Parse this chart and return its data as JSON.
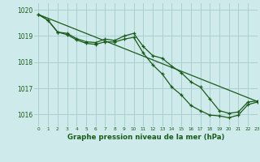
{
  "title": "Graphe pression niveau de la mer (hPa)",
  "background_color": "#ceeaea",
  "grid_color": "#aacece",
  "line_color": "#1a5c1a",
  "xlim": [
    -0.5,
    23
  ],
  "ylim": [
    1015.55,
    1020.25
  ],
  "yticks": [
    1016,
    1017,
    1018,
    1019,
    1020
  ],
  "xticks": [
    0,
    1,
    2,
    3,
    4,
    5,
    6,
    7,
    8,
    9,
    10,
    11,
    12,
    13,
    14,
    15,
    16,
    17,
    18,
    19,
    20,
    21,
    22,
    23
  ],
  "series_diagonal": {
    "x": [
      0,
      23
    ],
    "y": [
      1019.82,
      1016.5
    ]
  },
  "series_upper": {
    "x": [
      0,
      1,
      2,
      3,
      4,
      5,
      6,
      7,
      8,
      9,
      10,
      11,
      12,
      13,
      14,
      15,
      16,
      17,
      18,
      19,
      20,
      21,
      22,
      23
    ],
    "y": [
      1019.82,
      1019.6,
      1019.15,
      1019.1,
      1018.9,
      1018.78,
      1018.75,
      1018.88,
      1018.83,
      1019.0,
      1019.1,
      1018.6,
      1018.25,
      1018.15,
      1017.85,
      1017.6,
      1017.25,
      1017.05,
      1016.6,
      1016.15,
      1016.05,
      1016.1,
      1016.48,
      1016.52
    ]
  },
  "series_lower": {
    "x": [
      0,
      1,
      2,
      3,
      4,
      5,
      6,
      7,
      8,
      9,
      10,
      11,
      12,
      13,
      14,
      15,
      16,
      17,
      18,
      19,
      20,
      21,
      22,
      23
    ],
    "y": [
      1019.82,
      1019.6,
      1019.15,
      1019.05,
      1018.85,
      1018.72,
      1018.68,
      1018.78,
      1018.77,
      1018.88,
      1018.95,
      1018.35,
      1017.9,
      1017.55,
      1017.05,
      1016.75,
      1016.35,
      1016.15,
      1015.98,
      1015.95,
      1015.88,
      1015.98,
      1016.38,
      1016.48
    ]
  }
}
